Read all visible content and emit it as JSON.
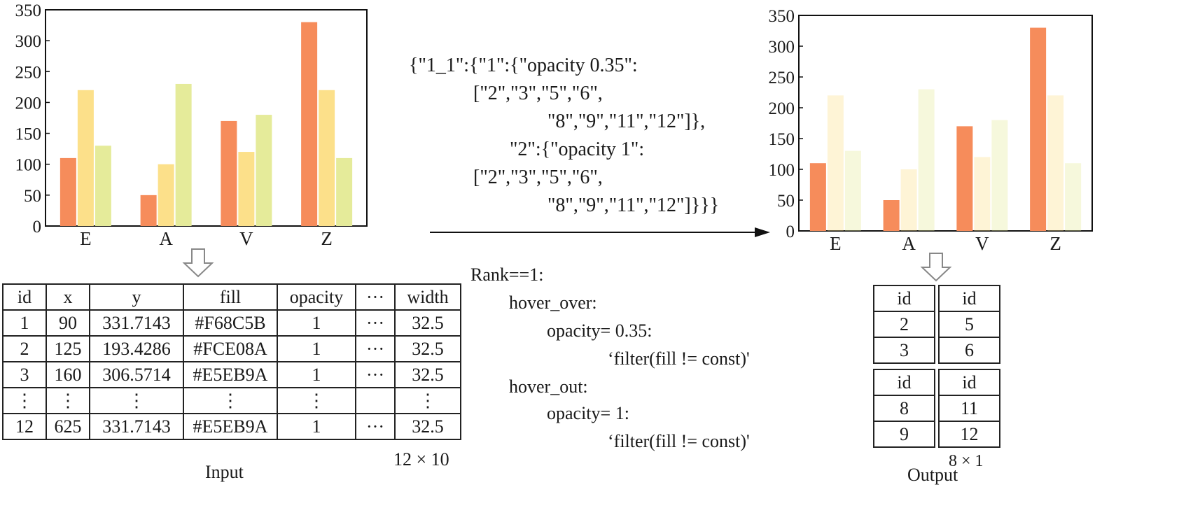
{
  "input_chart": {
    "type": "bar",
    "categories": [
      "E",
      "A",
      "V",
      "Z"
    ],
    "ylim": [
      0,
      350
    ],
    "yticks": [
      "0",
      "50",
      "100",
      "150",
      "200",
      "250",
      "300",
      "350"
    ],
    "series": [
      {
        "values": [
          110,
          50,
          170,
          330
        ],
        "color": "#F68C5B",
        "opacity": 1
      },
      {
        "values": [
          220,
          100,
          120,
          220
        ],
        "color": "#FCE08A",
        "opacity": 1
      },
      {
        "values": [
          130,
          230,
          180,
          110
        ],
        "color": "#E5EB9A",
        "opacity": 1
      }
    ]
  },
  "output_chart": {
    "type": "bar",
    "categories": [
      "E",
      "A",
      "V",
      "Z"
    ],
    "ylim": [
      0,
      350
    ],
    "yticks": [
      "0",
      "50",
      "100",
      "150",
      "200",
      "250",
      "300",
      "350"
    ],
    "series": [
      {
        "values": [
          110,
          50,
          170,
          330
        ],
        "color": "#F68C5B",
        "opacity": 1
      },
      {
        "values": [
          220,
          100,
          120,
          220
        ],
        "color": "#FCE08A",
        "opacity": 0.35
      },
      {
        "values": [
          130,
          230,
          180,
          110
        ],
        "color": "#E5EB9A",
        "opacity": 0.35
      }
    ]
  },
  "chart_data": [
    {
      "type": "bar",
      "categories": [
        "E",
        "A",
        "V",
        "Z"
      ],
      "ylim": [
        0,
        350
      ],
      "series": [
        {
          "values": [
            110,
            50,
            170,
            330
          ]
        },
        {
          "values": [
            220,
            100,
            120,
            220
          ]
        },
        {
          "values": [
            130,
            230,
            180,
            110
          ]
        }
      ]
    },
    {
      "type": "bar",
      "categories": [
        "E",
        "A",
        "V",
        "Z"
      ],
      "ylim": [
        0,
        350
      ],
      "series": [
        {
          "values": [
            110,
            50,
            170,
            330
          ]
        },
        {
          "values": [
            220,
            100,
            120,
            220
          ]
        },
        {
          "values": [
            130,
            230,
            180,
            110
          ]
        }
      ]
    }
  ],
  "json_spec": [
    "{\"1_1\":{\"1\":{\"opacity 0.35\":",
    "[\"2\",\"3\",\"5\",\"6\",",
    "\"8\",\"9\",\"11\",\"12\"]},",
    "\"2\":{\"opacity 1\":",
    "[\"2\",\"3\",\"5\",\"6\",",
    "\"8\",\"9\",\"11\",\"12\"]}}}"
  ],
  "rules": [
    "Rank==1:",
    "hover_over:",
    "opacity= 0.35:",
    "‘filter(fill != const)'",
    "hover_out:",
    "opacity= 1:",
    "‘filter(fill != const)'"
  ],
  "input_table": {
    "headers": [
      "id",
      "x",
      "y",
      "fill",
      "opacity",
      "···",
      "width"
    ],
    "rows": [
      [
        "1",
        "90",
        "331.7143",
        "#F68C5B",
        "1",
        "···",
        "32.5"
      ],
      [
        "2",
        "125",
        "193.4286",
        "#FCE08A",
        "1",
        "···",
        "32.5"
      ],
      [
        "3",
        "160",
        "306.5714",
        "#E5EB9A",
        "1",
        "···",
        "32.5"
      ],
      [
        "⋮",
        "⋮",
        "⋮",
        "⋮",
        "⋮",
        "",
        "⋮"
      ],
      [
        "12",
        "625",
        "331.7143",
        "#E5EB9A",
        "1",
        "···",
        "32.5"
      ]
    ],
    "dims": "12 × 10",
    "caption": "Input"
  },
  "output_tables": {
    "blocks": [
      {
        "left": [
          "id",
          "2",
          "3"
        ],
        "right": [
          "id",
          "5",
          "6"
        ]
      },
      {
        "left": [
          "id",
          "8",
          "9"
        ],
        "right": [
          "id",
          "11",
          "12"
        ]
      }
    ],
    "dims": "8 × 1",
    "caption": "Output"
  },
  "icons": {
    "down_arrow": "down-arrow-icon",
    "right_arrow": "right-arrow-icon"
  }
}
